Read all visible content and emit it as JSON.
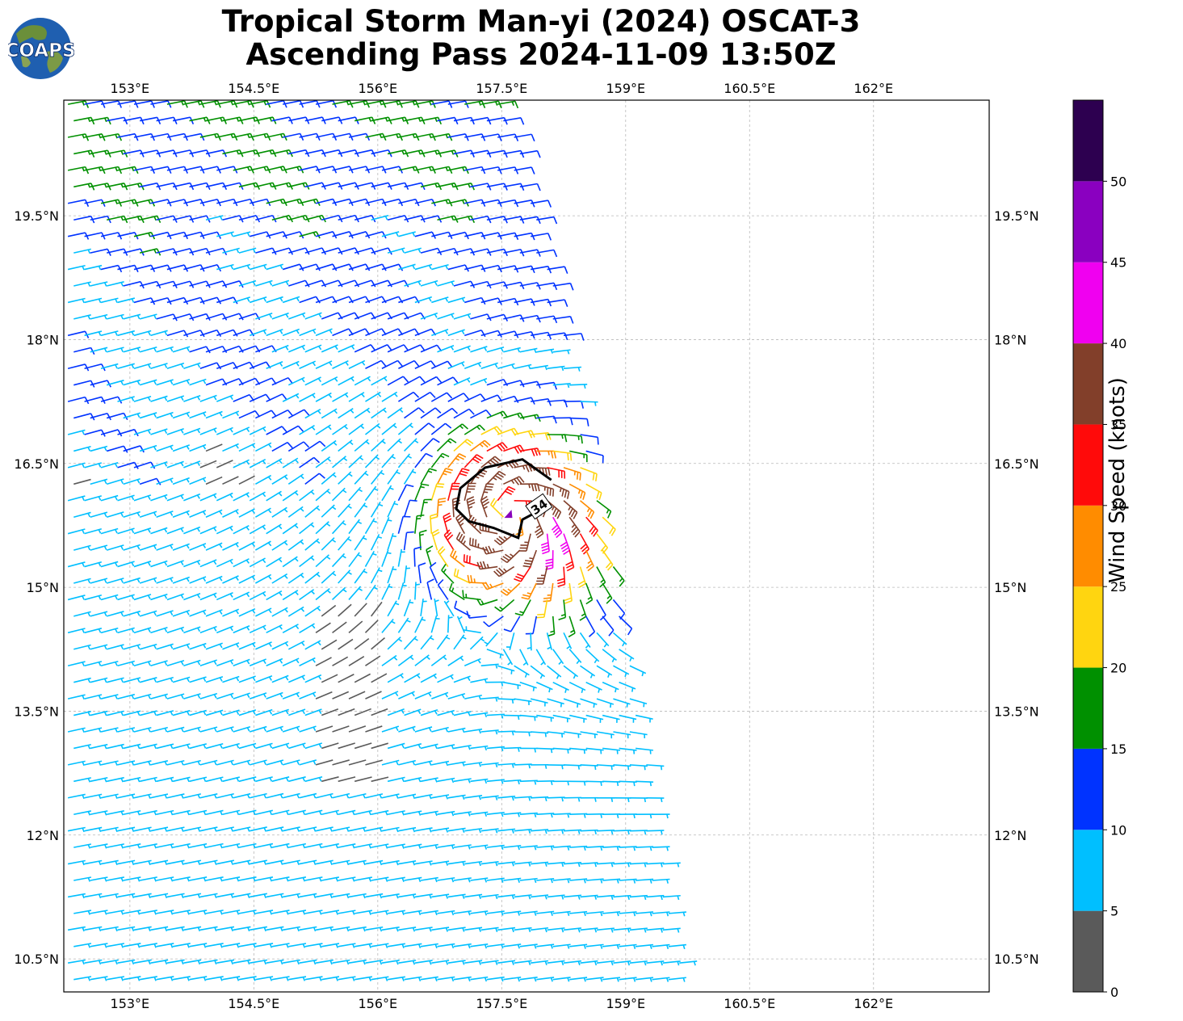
{
  "header": {
    "title_line1": "Tropical Storm Man-yi (2024) OSCAT-3",
    "title_line2": "Ascending Pass 2024-11-09 13:50Z",
    "logo_text": "COAPS"
  },
  "map": {
    "extent": {
      "lon_min": 152.2,
      "lon_max": 163.4,
      "lat_min": 10.1,
      "lat_max": 20.9
    },
    "lon_ticks": [
      153.0,
      154.5,
      156.0,
      157.5,
      159.0,
      160.5,
      162.0
    ],
    "lon_tick_labels": [
      "153°E",
      "154.5°E",
      "156°E",
      "157.5°E",
      "159°E",
      "160.5°E",
      "162°E"
    ],
    "lat_ticks": [
      19.5,
      18.0,
      16.5,
      15.0,
      13.5,
      12.0,
      10.5
    ],
    "lat_tick_labels": [
      "19.5°N",
      "18°N",
      "16.5°N",
      "15°N",
      "13.5°N",
      "12°N",
      "10.5°N"
    ],
    "gridlines": true,
    "contour_34kt": {
      "label": "34",
      "color": "#000000",
      "lonlat": [
        [
          158.1,
          16.3
        ],
        [
          157.75,
          16.55
        ],
        [
          157.3,
          16.45
        ],
        [
          157.0,
          16.2
        ],
        [
          156.95,
          15.95
        ],
        [
          157.1,
          15.8
        ],
        [
          157.4,
          15.72
        ],
        [
          157.7,
          15.6
        ],
        [
          157.75,
          15.82
        ],
        [
          158.05,
          15.98
        ]
      ]
    },
    "storm_center": {
      "lon": 157.58,
      "lat": 15.88,
      "color": "#8800bb"
    }
  },
  "colorbar": {
    "label": "Wind Speed (knots)",
    "min": 0,
    "max": 55,
    "tick_values": [
      0,
      5,
      10,
      15,
      20,
      25,
      30,
      35,
      40,
      45,
      50
    ],
    "tick_labels": [
      "0",
      "5",
      "10",
      "15",
      "20",
      "25",
      "30",
      "35",
      "40",
      "45",
      "50"
    ],
    "bins": [
      {
        "from": 0,
        "to": 5,
        "color": "#5a5a5a"
      },
      {
        "from": 5,
        "to": 10,
        "color": "#00bfff"
      },
      {
        "from": 10,
        "to": 15,
        "color": "#0033ff"
      },
      {
        "from": 15,
        "to": 20,
        "color": "#009000"
      },
      {
        "from": 20,
        "to": 25,
        "color": "#ffd510"
      },
      {
        "from": 25,
        "to": 30,
        "color": "#ff8c00"
      },
      {
        "from": 30,
        "to": 35,
        "color": "#ff0a0a"
      },
      {
        "from": 35,
        "to": 40,
        "color": "#823f2a"
      },
      {
        "from": 40,
        "to": 45,
        "color": "#f000f0"
      },
      {
        "from": 45,
        "to": 50,
        "color": "#8a00c0"
      },
      {
        "from": 50,
        "to": 55,
        "color": "#2d0050"
      }
    ]
  }
}
